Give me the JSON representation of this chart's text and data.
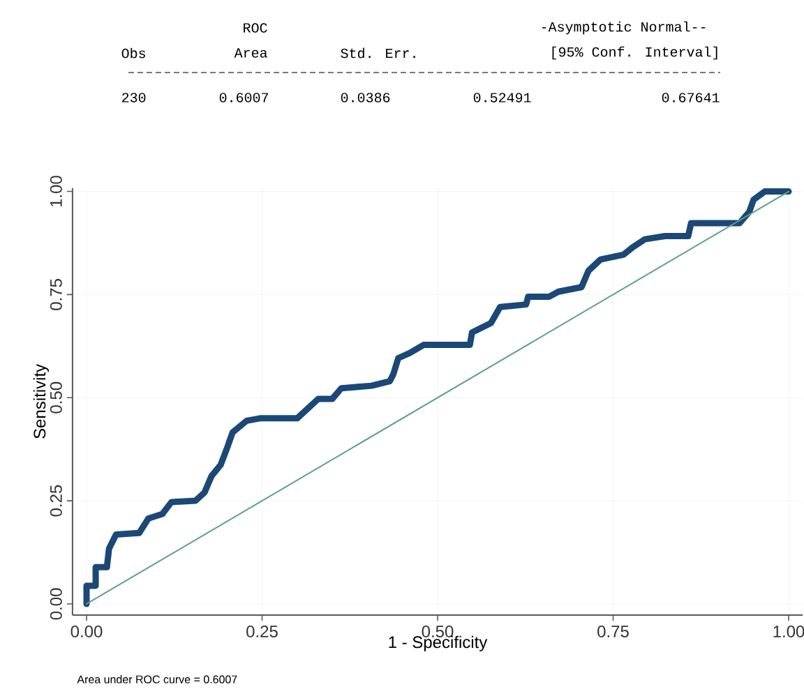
{
  "chart_data": {
    "type": "line",
    "xlabel": "1 - Specificity",
    "ylabel": "Sensitivity",
    "xlim": [
      -0.02,
      1.02
    ],
    "ylim": [
      -0.027,
      1.008
    ],
    "xticks": [
      {
        "value": 0,
        "label": "0.00"
      },
      {
        "value": 0.25,
        "label": "0.25"
      },
      {
        "value": 0.5,
        "label": "0.50"
      },
      {
        "value": 0.75,
        "label": "0.75"
      },
      {
        "value": 1,
        "label": "1.00"
      }
    ],
    "yticks": [
      {
        "value": 0,
        "label": "0.00"
      },
      {
        "value": 0.25,
        "label": "0.25"
      },
      {
        "value": 0.5,
        "label": "0.50"
      },
      {
        "value": 0.75,
        "label": "0.75"
      },
      {
        "value": 1,
        "label": "1.00"
      }
    ],
    "grid": true,
    "series": [
      {
        "color": "#1b4876",
        "x": [
          0,
          0,
          0.013,
          0.013,
          0.029,
          0.032,
          0.042,
          0.075,
          0.088,
          0.108,
          0.121,
          0.155,
          0.168,
          0.178,
          0.191,
          0.201,
          0.208,
          0.228,
          0.247,
          0.3,
          0.314,
          0.33,
          0.35,
          0.363,
          0.406,
          0.432,
          0.437,
          0.444,
          0.46,
          0.48,
          0.546,
          0.549,
          0.576,
          0.589,
          0.626,
          0.629,
          0.659,
          0.672,
          0.705,
          0.715,
          0.732,
          0.765,
          0.778,
          0.795,
          0.824,
          0.857,
          0.861,
          0.93,
          0.944,
          0.95,
          0.966,
          1.0
        ],
        "values": [
          0,
          0.044,
          0.044,
          0.089,
          0.089,
          0.134,
          0.168,
          0.172,
          0.207,
          0.218,
          0.247,
          0.25,
          0.27,
          0.31,
          0.337,
          0.382,
          0.416,
          0.444,
          0.45,
          0.45,
          0.472,
          0.497,
          0.497,
          0.523,
          0.529,
          0.54,
          0.557,
          0.596,
          0.608,
          0.628,
          0.628,
          0.658,
          0.681,
          0.72,
          0.726,
          0.745,
          0.745,
          0.757,
          0.768,
          0.808,
          0.835,
          0.847,
          0.865,
          0.884,
          0.892,
          0.892,
          0.923,
          0.923,
          0.951,
          0.98,
          1.0,
          1.0
        ]
      },
      {
        "color": "#5f9e86",
        "x": [
          0,
          1
        ],
        "values": [
          0,
          1
        ]
      }
    ],
    "annotations": [
      "ROC",
      "-Asymptotic Normal--",
      "Obs",
      "Area",
      "Std. Err.",
      "[95% Conf. Interval]",
      "230",
      "0.6007",
      "0.0386",
      "0.52491",
      "0.67641",
      "Area under ROC curve = 0.6007"
    ]
  }
}
